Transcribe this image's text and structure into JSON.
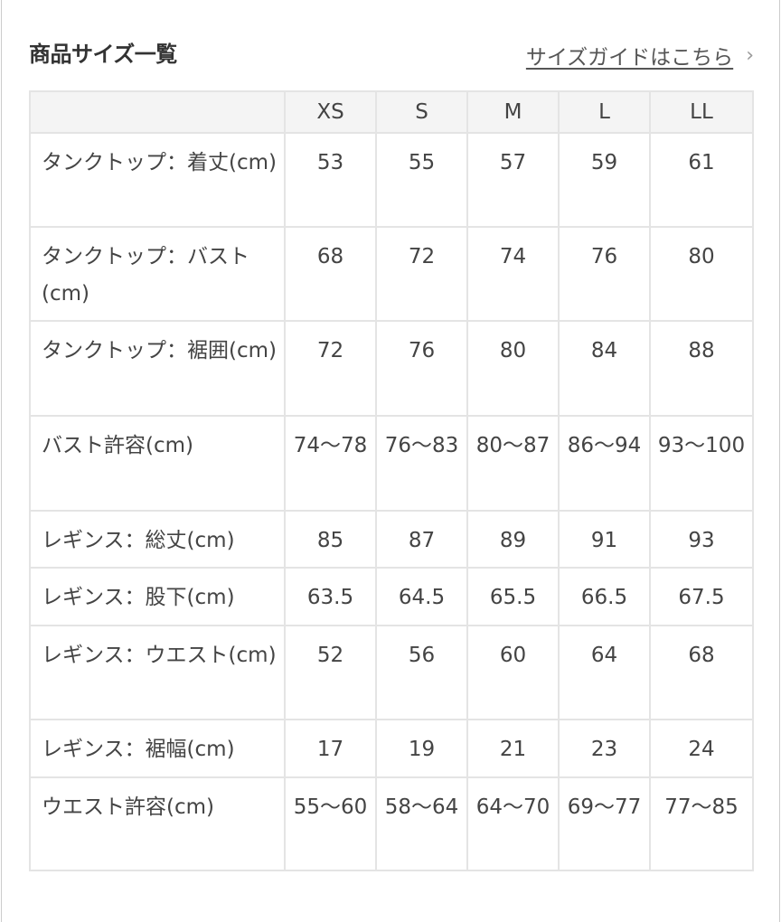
{
  "title": "商品サイズ一覧",
  "guide_link": "サイズガイドはこちら",
  "chevron": "›",
  "sizes": [
    "XS",
    "S",
    "M",
    "L",
    "LL"
  ],
  "rows": [
    {
      "label": "タンクトップ：着丈(cm)",
      "values": [
        "53",
        "55",
        "57",
        "59",
        "61"
      ]
    },
    {
      "label": "タンクトップ：バスト(cm)",
      "values": [
        "68",
        "72",
        "74",
        "76",
        "80"
      ]
    },
    {
      "label": "タンクトップ：裾囲(cm)",
      "values": [
        "72",
        "76",
        "80",
        "84",
        "88"
      ]
    },
    {
      "label": "バスト許容(cm)",
      "values": [
        "74〜78",
        "76〜83",
        "80〜87",
        "86〜94",
        "93〜100"
      ]
    },
    {
      "label": "レギンス：総丈(cm)",
      "values": [
        "85",
        "87",
        "89",
        "91",
        "93"
      ]
    },
    {
      "label": "レギンス：股下(cm)",
      "values": [
        "63.5",
        "64.5",
        "65.5",
        "66.5",
        "67.5"
      ]
    },
    {
      "label": "レギンス：ウエスト(cm)",
      "values": [
        "52",
        "56",
        "60",
        "64",
        "68"
      ]
    },
    {
      "label": "レギンス：裾幅(cm)",
      "values": [
        "17",
        "19",
        "21",
        "23",
        "24"
      ]
    },
    {
      "label": "ウエスト許容(cm)",
      "values": [
        "55〜60",
        "58〜64",
        "64〜70",
        "69〜77",
        "77〜85"
      ]
    }
  ]
}
